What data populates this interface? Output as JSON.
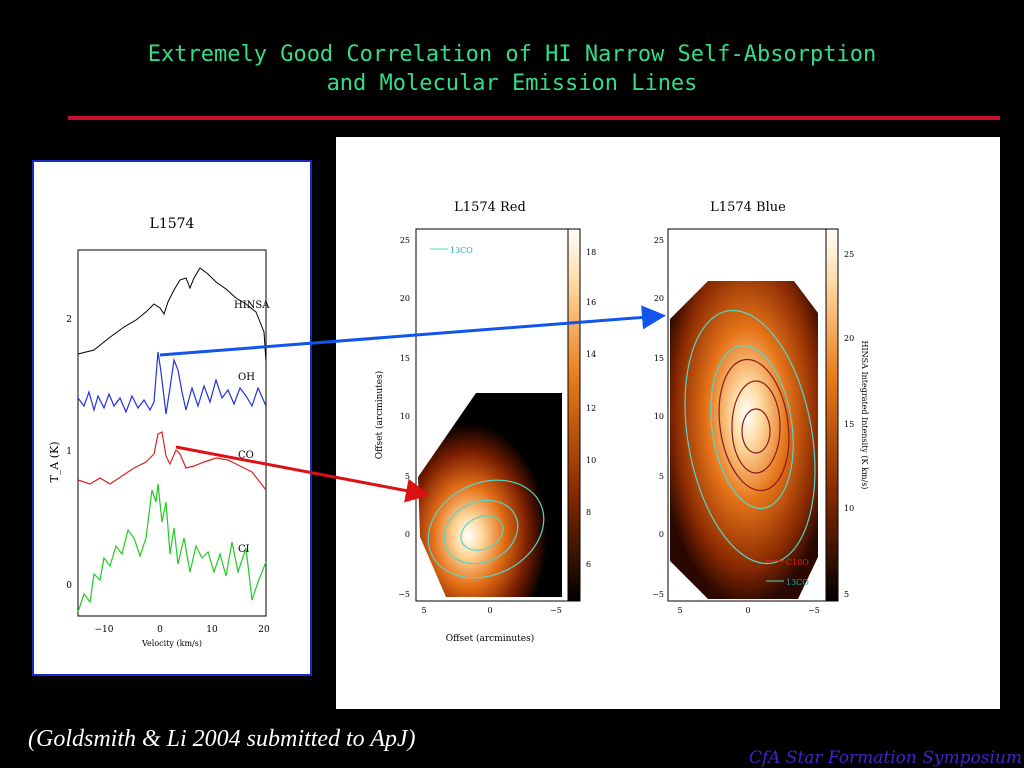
{
  "title": {
    "line1": "Extremely Good Correlation of HI Narrow Self-Absorption",
    "line2": "and Molecular Emission Lines"
  },
  "spectrum": {
    "title": "L1574",
    "ylabel": "T_A (K)",
    "xlabel": "Velocity (km/s)",
    "x_ticks": [
      "−10",
      "0",
      "10",
      "20"
    ],
    "y_ticks": [
      "2",
      "1",
      "0"
    ],
    "line_labels": [
      "HINSA",
      "OH",
      "CO",
      "CI"
    ],
    "line_colors": [
      "#000000",
      "#2233dd",
      "#dd2222",
      "#22cc22"
    ]
  },
  "map_red": {
    "title": "L1574 Red",
    "xlabel": "Offset (arcminutes)",
    "ylabel": "Offset (arcminutes)",
    "x_ticks": [
      "5",
      "0",
      "−5"
    ],
    "y_ticks": [
      "25",
      "20",
      "15",
      "10",
      "5",
      "0",
      "−5"
    ],
    "colorbar_ticks": [
      "18",
      "16",
      "14",
      "12",
      "10",
      "8",
      "6"
    ],
    "legend": "13CO"
  },
  "map_blue": {
    "title": "L1574 Blue",
    "x_ticks": [
      "5",
      "0",
      "−5"
    ],
    "y_ticks": [
      "25",
      "20",
      "15",
      "10",
      "5",
      "0",
      "−5"
    ],
    "colorbar_ticks": [
      "25",
      "20",
      "15",
      "10",
      "5"
    ],
    "colorbar_label": "HINSA Integrated Intensity (K km/s)",
    "legend": [
      "C18O",
      "13CO"
    ]
  },
  "citation": "(Goldsmith & Li 2004 submitted to ApJ)",
  "footer": "CfA Star Formation Symposium",
  "colors": {
    "title": "#33dd88",
    "rule": "#c8102e",
    "arrow_blue": "#1155ee",
    "arrow_red": "#dd1111"
  }
}
